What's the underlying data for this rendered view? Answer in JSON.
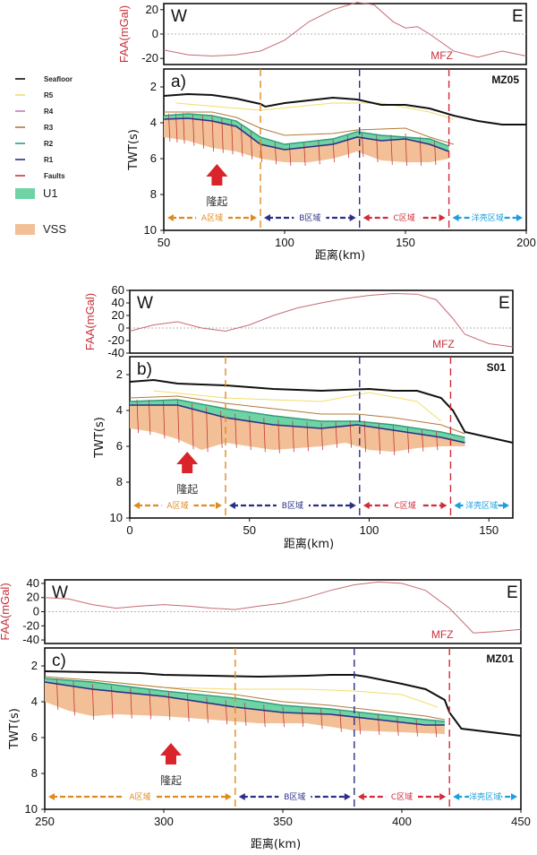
{
  "colors": {
    "seafloor": "#111111",
    "R5": "#f2dd6e",
    "R4": "#c77bbf",
    "R3": "#b07a3a",
    "R2": "#2f9e7a",
    "R1": "#2b2f86",
    "faults": "#c43a3a",
    "U1": "#6fd3a6",
    "VSS": "#f2bf96",
    "faa": "#c56b74",
    "zoneA": "#e08b1f",
    "zoneB": "#2b2f86",
    "zoneC": "#d02c3a",
    "zoneOcean": "#1aa0e0",
    "uplift": "#d9242b"
  },
  "legend": [
    {
      "label": "Seafloor",
      "kind": "line",
      "color_key": "seafloor"
    },
    {
      "label": "R5",
      "kind": "line",
      "color_key": "R5"
    },
    {
      "label": "R4",
      "kind": "line",
      "color_key": "R4"
    },
    {
      "label": "R3",
      "kind": "line",
      "color_key": "R3"
    },
    {
      "label": "R2",
      "kind": "line",
      "color_key": "R2"
    },
    {
      "label": "R1",
      "kind": "line",
      "color_key": "R1"
    },
    {
      "label": "Faults",
      "kind": "line",
      "color_key": "faults"
    },
    {
      "label": "U1",
      "kind": "patch",
      "color_key": "U1"
    },
    {
      "label": "VSS",
      "kind": "patch",
      "color_key": "VSS"
    }
  ],
  "labels": {
    "faa_axis": "FAA(mGal)",
    "twt_axis": "TWT(s)",
    "x_axis": "距离(km)",
    "west": "W",
    "east": "E",
    "mfz": "MFZ",
    "uplift": "隆起",
    "zone_a": "A区域",
    "zone_b": "B区域",
    "zone_c": "C区域",
    "zone_ocean": "洋壳区域"
  },
  "chart_data": [
    {
      "type": "line",
      "panel": "a)",
      "line_name": "MZ05",
      "xlim": [
        50,
        200
      ],
      "x_ticks": [
        50,
        100,
        150,
        200
      ],
      "faa": {
        "ylim": [
          -25,
          25
        ],
        "ticks": [
          20,
          0,
          -20
        ],
        "x": [
          50,
          60,
          70,
          80,
          90,
          100,
          110,
          120,
          130,
          137,
          145,
          150,
          155,
          160,
          170,
          180,
          190,
          200
        ],
        "y": [
          -13,
          -17,
          -18,
          -17,
          -14,
          -5,
          10,
          20,
          26,
          24,
          10,
          5,
          6,
          0,
          -14,
          -19,
          -14,
          -18
        ]
      },
      "twt": {
        "ylim": [
          10,
          1
        ],
        "ticks": [
          2,
          4,
          6,
          8,
          10
        ],
        "seafloor": {
          "x": [
            50,
            60,
            70,
            80,
            90,
            92,
            100,
            120,
            130,
            140,
            150,
            160,
            170,
            180,
            190,
            200
          ],
          "y": [
            2.5,
            2.4,
            2.45,
            2.65,
            2.95,
            3.1,
            2.9,
            2.6,
            2.7,
            3.0,
            3.0,
            3.2,
            3.6,
            3.9,
            4.1,
            4.1
          ]
        },
        "R5": {
          "x": [
            55,
            90,
            120,
            140,
            160,
            170
          ],
          "y": [
            2.9,
            3.3,
            2.9,
            2.9,
            3.4,
            3.8
          ]
        },
        "R3": {
          "x": [
            50,
            70,
            80,
            90,
            100,
            120,
            130,
            150,
            160,
            170
          ],
          "y": [
            3.4,
            3.4,
            3.7,
            4.3,
            4.7,
            4.6,
            4.4,
            4.3,
            4.8,
            5.2
          ]
        },
        "U1_top": {
          "x": [
            50,
            60,
            70,
            80,
            90,
            100,
            120,
            130,
            140,
            150,
            160,
            168
          ],
          "y": [
            3.6,
            3.5,
            3.6,
            3.9,
            4.8,
            5.2,
            4.9,
            4.5,
            4.7,
            4.8,
            4.9,
            5.3
          ]
        },
        "R1": {
          "x": [
            50,
            60,
            70,
            80,
            90,
            100,
            120,
            130,
            140,
            150,
            160,
            168
          ],
          "y": [
            3.8,
            3.75,
            3.9,
            4.2,
            5.2,
            5.5,
            5.2,
            4.8,
            5.0,
            4.9,
            5.2,
            5.6
          ]
        },
        "VSS_base": {
          "x": [
            50,
            60,
            70,
            80,
            90,
            100,
            110,
            120,
            130,
            140,
            150,
            160,
            168
          ],
          "y": [
            4.8,
            5.0,
            5.4,
            5.6,
            6.0,
            6.2,
            6.2,
            6.0,
            5.6,
            6.1,
            6.2,
            6.2,
            6.0
          ]
        },
        "faults_x": [
          52,
          55,
          58,
          62,
          66,
          70,
          74,
          78,
          82,
          86,
          90,
          96,
          102,
          108,
          114,
          120,
          126,
          132,
          138,
          144,
          150,
          156,
          162
        ]
      },
      "dividers": [
        90,
        131,
        168
      ],
      "uplift_x": 72,
      "mfz_x": 168
    },
    {
      "type": "line",
      "panel": "b)",
      "line_name": "S01",
      "xlim": [
        0,
        160
      ],
      "x_ticks": [
        0,
        50,
        100,
        150
      ],
      "faa": {
        "ylim": [
          -40,
          60
        ],
        "ticks": [
          60,
          40,
          20,
          0,
          -20,
          -40
        ],
        "x": [
          0,
          10,
          20,
          30,
          40,
          50,
          60,
          70,
          80,
          90,
          100,
          110,
          120,
          128,
          135,
          140,
          150,
          160
        ],
        "y": [
          -5,
          5,
          10,
          0,
          -5,
          5,
          20,
          32,
          40,
          47,
          52,
          55,
          54,
          45,
          15,
          -10,
          -25,
          -30
        ]
      },
      "twt": {
        "ylim": [
          10,
          1
        ],
        "ticks": [
          2,
          4,
          6,
          8,
          10
        ],
        "seafloor": {
          "x": [
            0,
            10,
            20,
            40,
            60,
            80,
            100,
            110,
            120,
            130,
            135,
            140,
            150,
            160
          ],
          "y": [
            2.4,
            2.3,
            2.5,
            2.6,
            2.8,
            2.9,
            2.8,
            2.9,
            2.9,
            3.3,
            4.0,
            5.2,
            5.5,
            5.8
          ]
        },
        "R5": {
          "x": [
            10,
            40,
            80,
            100,
            120,
            130
          ],
          "y": [
            2.9,
            3.3,
            3.5,
            3.0,
            3.5,
            4.6
          ]
        },
        "R3": {
          "x": [
            0,
            20,
            40,
            60,
            80,
            95,
            110,
            130,
            140
          ],
          "y": [
            3.3,
            3.2,
            3.6,
            3.9,
            4.2,
            4.2,
            4.4,
            4.8,
            5.3
          ]
        },
        "U1_top": {
          "x": [
            0,
            20,
            40,
            60,
            80,
            95,
            110,
            130,
            140
          ],
          "y": [
            3.5,
            3.4,
            3.9,
            4.3,
            4.6,
            4.6,
            4.8,
            5.2,
            5.5
          ]
        },
        "R1": {
          "x": [
            0,
            20,
            40,
            60,
            80,
            95,
            110,
            130,
            140
          ],
          "y": [
            3.7,
            3.7,
            4.4,
            4.8,
            5.0,
            4.8,
            5.1,
            5.5,
            5.8
          ]
        },
        "VSS_base": {
          "x": [
            0,
            10,
            20,
            30,
            40,
            50,
            60,
            70,
            80,
            90,
            100,
            110,
            120,
            130,
            140
          ],
          "y": [
            5.0,
            5.2,
            5.6,
            6.2,
            5.8,
            6.0,
            6.2,
            6.1,
            6.0,
            5.8,
            6.2,
            6.3,
            6.1,
            6.0,
            6.0
          ]
        },
        "faults_x": [
          3,
          8,
          14,
          20,
          26,
          32,
          38,
          44,
          50,
          56,
          62,
          68,
          74,
          80,
          86,
          92,
          98,
          104,
          110,
          116,
          122,
          128
        ]
      },
      "dividers": [
        40,
        96,
        134
      ],
      "uplift_x": 24,
      "mfz_x": 134
    },
    {
      "type": "line",
      "panel": "c)",
      "line_name": "MZ01",
      "xlim": [
        250,
        450
      ],
      "x_ticks": [
        250,
        300,
        350,
        400,
        450
      ],
      "faa": {
        "ylim": [
          -45,
          45
        ],
        "ticks": [
          40,
          20,
          0,
          -20,
          -40
        ],
        "x": [
          250,
          260,
          270,
          280,
          290,
          300,
          310,
          320,
          330,
          340,
          350,
          360,
          370,
          380,
          390,
          400,
          410,
          420,
          430,
          440,
          450
        ],
        "y": [
          20,
          18,
          10,
          5,
          8,
          10,
          8,
          5,
          3,
          8,
          12,
          20,
          30,
          38,
          42,
          40,
          30,
          5,
          -30,
          -28,
          -25
        ]
      },
      "twt": {
        "ylim": [
          10,
          1
        ],
        "ticks": [
          2,
          4,
          6,
          8,
          10
        ],
        "seafloor": {
          "x": [
            250,
            270,
            290,
            300,
            320,
            340,
            360,
            370,
            380,
            385,
            400,
            410,
            418,
            420,
            425,
            450
          ],
          "y": [
            2.3,
            2.35,
            2.4,
            2.5,
            2.55,
            2.6,
            2.55,
            2.5,
            2.5,
            2.6,
            3.0,
            3.3,
            3.9,
            4.6,
            5.5,
            5.9
          ]
        },
        "R5": {
          "x": [
            270,
            300,
            330,
            360,
            380,
            400,
            415
          ],
          "y": [
            2.8,
            3.2,
            3.3,
            3.3,
            3.4,
            3.6,
            4.3
          ]
        },
        "R3": {
          "x": [
            250,
            270,
            300,
            330,
            350,
            370,
            390,
            410,
            418
          ],
          "y": [
            2.6,
            2.8,
            3.2,
            3.6,
            4.0,
            4.2,
            4.5,
            4.8,
            5.0
          ]
        },
        "U1_top": {
          "x": [
            250,
            270,
            300,
            330,
            350,
            370,
            390,
            410,
            418
          ],
          "y": [
            2.7,
            2.9,
            3.4,
            3.8,
            4.2,
            4.4,
            4.7,
            5.0,
            5.1
          ]
        },
        "R1": {
          "x": [
            250,
            270,
            300,
            330,
            350,
            370,
            390,
            410,
            418
          ],
          "y": [
            2.9,
            3.3,
            3.7,
            4.3,
            4.6,
            4.7,
            5.0,
            5.3,
            5.3
          ]
        },
        "VSS_base": {
          "x": [
            250,
            260,
            270,
            280,
            300,
            320,
            340,
            360,
            380,
            400,
            418
          ],
          "y": [
            4.0,
            4.5,
            4.8,
            4.7,
            4.8,
            5.0,
            5.2,
            5.2,
            5.6,
            5.7,
            5.8
          ]
        },
        "faults_x": [
          255,
          262,
          270,
          278,
          286,
          294,
          302,
          310,
          318,
          326,
          334,
          342,
          350,
          358,
          366,
          374,
          382,
          390,
          398,
          406,
          414
        ]
      },
      "dividers": [
        330,
        380,
        420
      ],
      "uplift_x": 303,
      "mfz_x": 420
    }
  ]
}
